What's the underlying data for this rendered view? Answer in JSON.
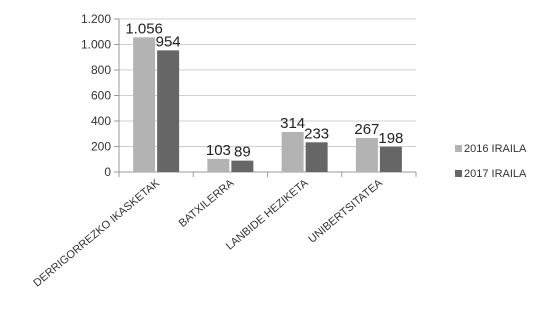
{
  "chart_data": {
    "type": "bar",
    "categories": [
      "DERRIGORREZKO IKASKETAK",
      "BATXILERRA",
      "LANBIDE HEZIKETA",
      "UNIBERTSITATEA"
    ],
    "series": [
      {
        "name": "2016 IRAILA",
        "values": [
          1056,
          103,
          314,
          267
        ],
        "labels": [
          "1.056",
          "103",
          "314",
          "267"
        ],
        "color": "#b3b3b3"
      },
      {
        "name": "2017 IRAILA",
        "values": [
          954,
          89,
          233,
          198
        ],
        "labels": [
          "954",
          "89",
          "233",
          "198"
        ],
        "color": "#666666"
      }
    ],
    "yticks": [
      0,
      200,
      400,
      600,
      800,
      1000,
      1200
    ],
    "ytick_labels": [
      "0",
      "200",
      "400",
      "600",
      "800",
      "1.000",
      "1.200"
    ],
    "ylim": [
      0,
      1200
    ],
    "grid": true,
    "legend_position": "right"
  }
}
